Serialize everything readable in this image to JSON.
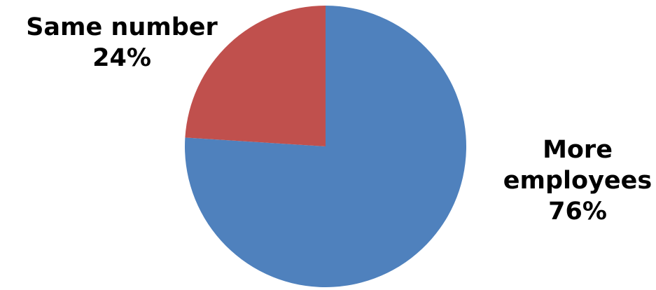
{
  "chart_data": {
    "type": "pie",
    "title": "",
    "start_angle_deg": 0,
    "direction": "clockwise",
    "slices": [
      {
        "category": "More employees",
        "label_lines": [
          "More",
          "employees",
          "76%"
        ],
        "value": 76,
        "color": "#4F81BD"
      },
      {
        "category": "Same number",
        "label_lines": [
          "Same number",
          "24%"
        ],
        "value": 24,
        "color": "#C0504D"
      }
    ],
    "legend": "none",
    "labels": "outside"
  }
}
